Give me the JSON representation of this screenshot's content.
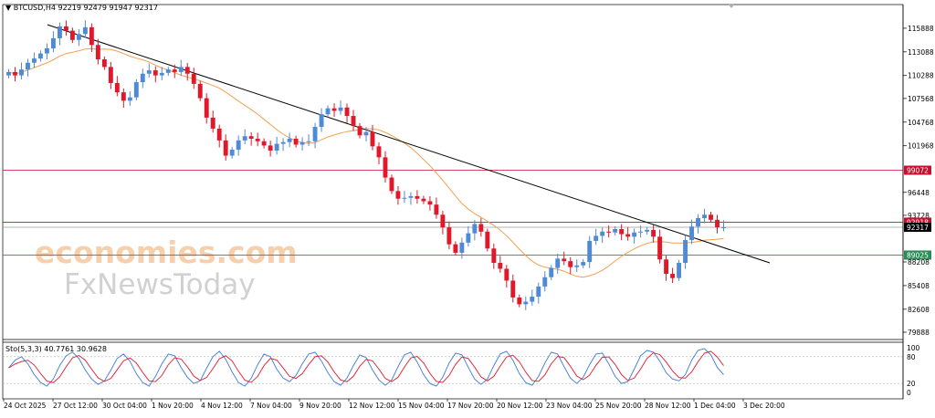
{
  "header": {
    "symbol_text": "BTCUSD,H4  92219 92479 91947 92317"
  },
  "oscillator": {
    "label": "Sto(5,3,3) 40.7761 30.9628"
  },
  "watermark": {
    "brand": "economies.com",
    "sub": "FxNewsToday"
  },
  "colors": {
    "bull": "#4f8ad6",
    "bear": "#e0182a",
    "ma": "#f0a050",
    "trend": "#000000",
    "res": "#c8102e",
    "sup": "#2e8b57"
  },
  "chart_data": {
    "type": "candlestick",
    "price_ylim": [
      79888,
      117500
    ],
    "y_ticks": [
      115888,
      113088,
      110288,
      107568,
      104768,
      101968,
      99072,
      96448,
      93728,
      92918,
      92317,
      89025,
      88208,
      85408,
      82608,
      79888
    ],
    "x_ticks": [
      "24 Oct 2025",
      "27 Oct 12:00",
      "30 Oct 04:00",
      "1 Nov 20:00",
      "4 Nov 12:00",
      "7 Nov 04:00",
      "9 Nov 20:00",
      "12 Nov 12:00",
      "15 Nov 04:00",
      "17 Nov 20:00",
      "20 Nov 12:00",
      "23 Nov 04:00",
      "25 Nov 20:00",
      "28 Nov 12:00",
      "1 Dec 04:00",
      "3 Dec 20:00"
    ],
    "levels": [
      {
        "value": 99072,
        "label": "99072",
        "kind": "resistance"
      },
      {
        "value": 92918,
        "label": "92918",
        "kind": "resistance"
      },
      {
        "value": 92317,
        "label": "92317",
        "kind": "current"
      },
      {
        "value": 89025,
        "label": "89025",
        "kind": "support"
      }
    ],
    "trendline": {
      "from": [
        0,
        116300
      ],
      "to": [
        251,
        88100
      ]
    },
    "closes": [
      110700,
      110300,
      111000,
      111800,
      112300,
      112900,
      113500,
      114700,
      116100,
      115600,
      114500,
      115200,
      116000,
      113900,
      112200,
      111300,
      109400,
      108300,
      107300,
      107700,
      109500,
      110500,
      110900,
      110300,
      110600,
      111000,
      110700,
      111300,
      110500,
      109300,
      107600,
      105300,
      104000,
      102600,
      100800,
      101500,
      102600,
      103100,
      102800,
      102500,
      102000,
      101400,
      102200,
      102400,
      102800,
      102100,
      102400,
      102500,
      104200,
      105700,
      106400,
      106100,
      106500,
      105500,
      104300,
      103200,
      103600,
      101900,
      100600,
      98200,
      96600,
      95700,
      95800,
      96000,
      95700,
      95400,
      95000,
      93800,
      92300,
      90300,
      89300,
      90500,
      91600,
      92700,
      91800,
      89800,
      88100,
      87400,
      86000,
      84000,
      83200,
      83500,
      84100,
      85300,
      86400,
      87500,
      88600,
      88300,
      87600,
      87800,
      88200,
      90700,
      91300,
      91800,
      91700,
      92100,
      91500,
      91200,
      91700,
      91800,
      92000,
      91200,
      88500,
      86800,
      86300,
      88100,
      90800,
      92400,
      93400,
      93800,
      93200,
      92300,
      92317
    ],
    "stoch_ylim": [
      0,
      100
    ],
    "stoch_ticks": [
      100,
      80,
      20,
      0
    ],
    "stoch_k": [
      55,
      72,
      80,
      64,
      40,
      22,
      14,
      30,
      60,
      82,
      90,
      76,
      50,
      30,
      18,
      26,
      50,
      76,
      86,
      70,
      42,
      22,
      14,
      36,
      64,
      86,
      82,
      56,
      34,
      20,
      26,
      54,
      80,
      92,
      74,
      46,
      22,
      14,
      32,
      62,
      86,
      80,
      52,
      32,
      24,
      38,
      64,
      86,
      90,
      70,
      44,
      24,
      16,
      32,
      60,
      84,
      78,
      50,
      28,
      16,
      28,
      58,
      84,
      90,
      68,
      40,
      20,
      14,
      34,
      66,
      88,
      84,
      56,
      30,
      18,
      30,
      60,
      86,
      92,
      72,
      42,
      22,
      16,
      36,
      66,
      90,
      86,
      58,
      32,
      20,
      34,
      62,
      86,
      88,
      64,
      36,
      20,
      24,
      52,
      82,
      94,
      90,
      70,
      44,
      30,
      26,
      40,
      72,
      94,
      98,
      84,
      56,
      40
    ]
  }
}
